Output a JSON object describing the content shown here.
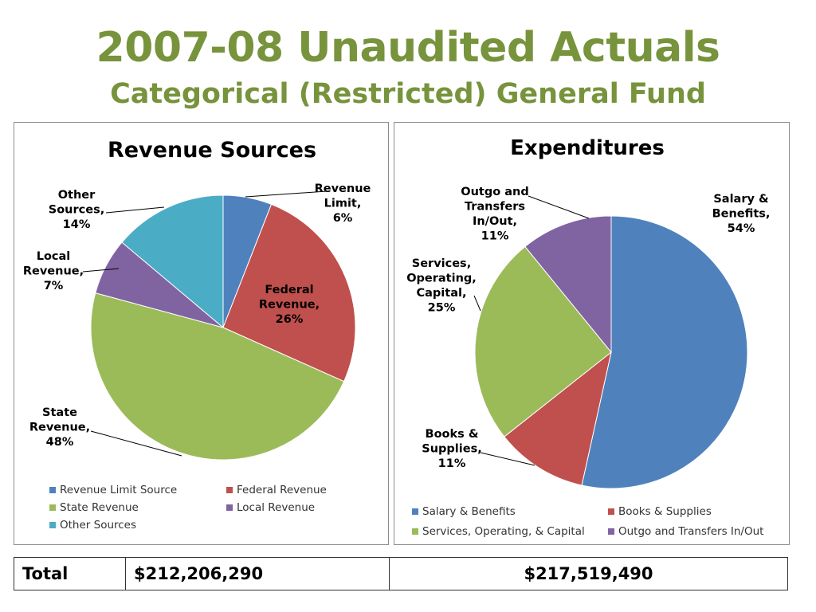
{
  "header": {
    "title": "2007-08 Unaudited Actuals",
    "subtitle": "Categorical (Restricted) General Fund"
  },
  "chart_data": [
    {
      "type": "pie",
      "title": "Revenue Sources",
      "categories": [
        "Revenue Limit Source",
        "Federal Revenue",
        "State Revenue",
        "Local Revenue",
        "Other Sources"
      ],
      "values": [
        6,
        26,
        48,
        7,
        14
      ],
      "data_labels": [
        [
          "Revenue",
          "Limit,",
          "6%"
        ],
        [
          "Federal",
          "Revenue,",
          "26%"
        ],
        [
          "State",
          "Revenue,",
          "48%"
        ],
        [
          "Local",
          "Revenue,",
          "7%"
        ],
        [
          "Other",
          "Sources,",
          "14%"
        ]
      ],
      "colors": [
        "#4f81bd",
        "#c0504d",
        "#9bbb59",
        "#8064a2",
        "#4bacc6"
      ],
      "legend_position": "bottom"
    },
    {
      "type": "pie",
      "title": "Expenditures",
      "categories": [
        "Salary & Benefits",
        "Books & Supplies",
        "Services, Operating, & Capital",
        "Outgo and Transfers In/Out"
      ],
      "values": [
        54,
        11,
        25,
        11
      ],
      "data_labels": [
        [
          "Salary &",
          "Benefits,",
          "54%"
        ],
        [
          "Books &",
          "Supplies,",
          "11%"
        ],
        [
          "Services,",
          "Operating,",
          "Capital,",
          "25%"
        ],
        [
          "Outgo and",
          "Transfers",
          "In/Out,",
          "11%"
        ]
      ],
      "colors": [
        "#4f81bd",
        "#c0504d",
        "#9bbb59",
        "#8064a2"
      ],
      "legend_position": "bottom"
    }
  ],
  "totals": {
    "label": "Total",
    "revenue": "$212,206,290",
    "expenditures": "$217,519,490"
  }
}
